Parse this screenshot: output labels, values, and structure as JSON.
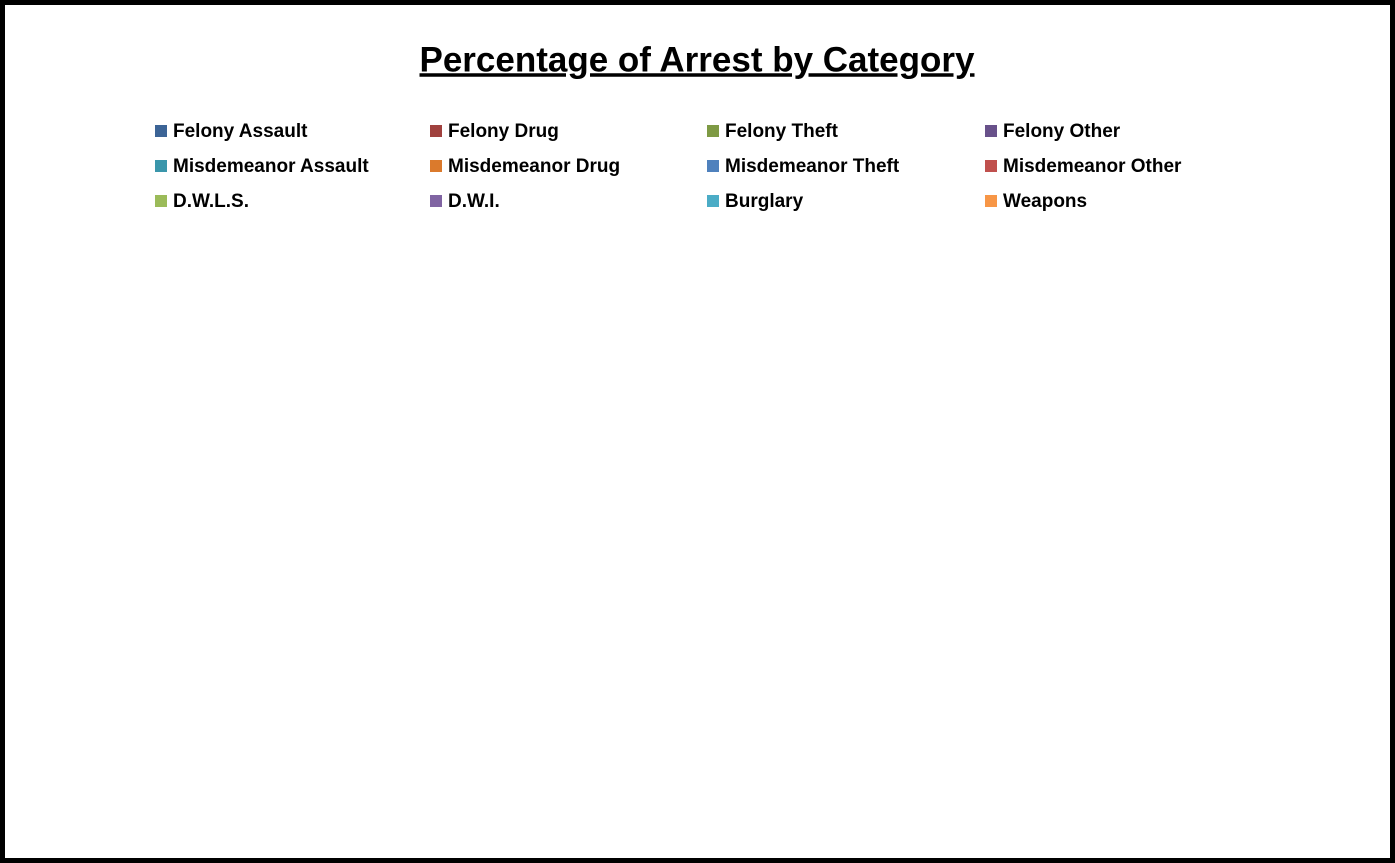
{
  "chart_data": {
    "type": "pie",
    "title": "Percentage of Arrest by Category",
    "categories": [
      "Felony Assault",
      "Felony Drug",
      "Felony Theft",
      "Felony Other",
      "Misdemeanor Assault",
      "Misdemeanor Drug",
      "Misdemeanor Theft",
      "Misdemeanor Other",
      "D.W.L.S.",
      "D.W.I.",
      "Burglary",
      "Weapons"
    ],
    "colors": [
      "#3c6496",
      "#a0413e",
      "#7e9a44",
      "#68518a",
      "#3a96ab",
      "#db7a2c",
      "#4f81bd",
      "#c0504d",
      "#9bbb59",
      "#8064a2",
      "#4bacc6",
      "#f79646"
    ]
  }
}
